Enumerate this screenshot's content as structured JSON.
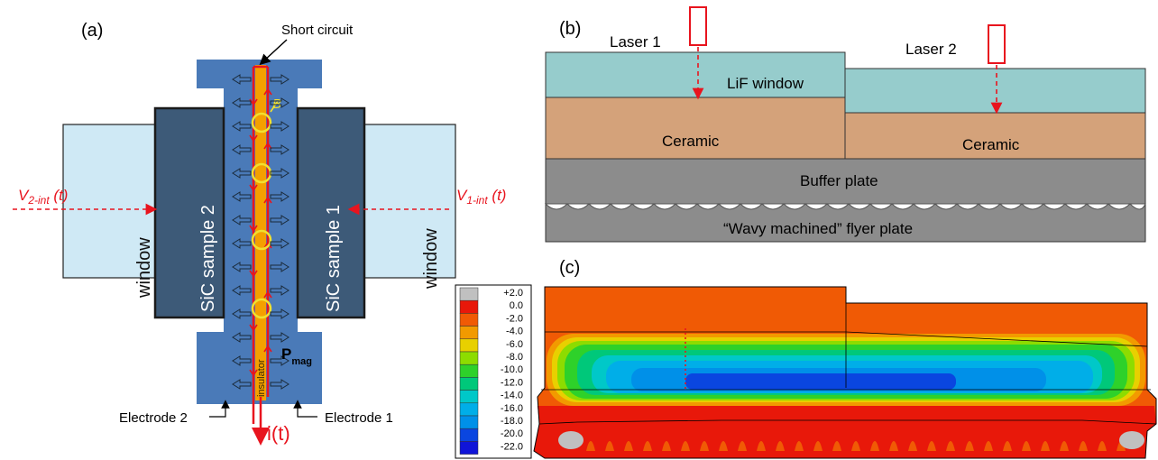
{
  "panel_a": {
    "label": "(a)",
    "short_circuit": "Short circuit",
    "b_field": "B",
    "sample_left": "SiC sample 2",
    "sample_right": "SiC sample 1",
    "window_left": "window",
    "window_right": "window",
    "v2_main": "V",
    "v2_sub": "2-int",
    "v2_tail": " (t)",
    "v1_main": "V",
    "v1_sub": "1-int",
    "v1_tail": " (t)",
    "insulator": "insulator",
    "pmag_main": "P",
    "pmag_sub": "mag",
    "electrode_left": "Electrode 2",
    "electrode_right": "Electrode 1",
    "current": "i(t)"
  },
  "panel_b": {
    "label": "(b)",
    "laser1": "Laser 1",
    "laser2": "Laser 2",
    "lif": "LiF window",
    "ceramic_left": "Ceramic",
    "ceramic_right": "Ceramic",
    "buffer": "Buffer plate",
    "flyer": "“Wavy machined” flyer plate"
  },
  "panel_c": {
    "label": "(c)",
    "legend": [
      "+2.0",
      "0.0",
      "-2.0",
      "-4.0",
      "-6.0",
      "-8.0",
      "-10.0",
      "-12.0",
      "-14.0",
      "-16.0",
      "-18.0",
      "-20.0",
      "-22.0"
    ],
    "legend_colors": [
      "#c0c0c0",
      "#e8180a",
      "#f05a05",
      "#f29a00",
      "#e8d000",
      "#8ddc00",
      "#2ed12a",
      "#00c87a",
      "#00c8c8",
      "#00aee8",
      "#0090e8",
      "#0a46e0",
      "#1014d8"
    ]
  },
  "colors": {
    "electrode_blue": "#4a7ab8",
    "sic_dark": "#3d5a78",
    "window_light": "#cfe9f5",
    "conductor": "#f4a000",
    "red": "#e8141e",
    "lif": "#96cccc",
    "ceramic": "#d4a27a",
    "plate_gray": "#8c8c8c"
  }
}
